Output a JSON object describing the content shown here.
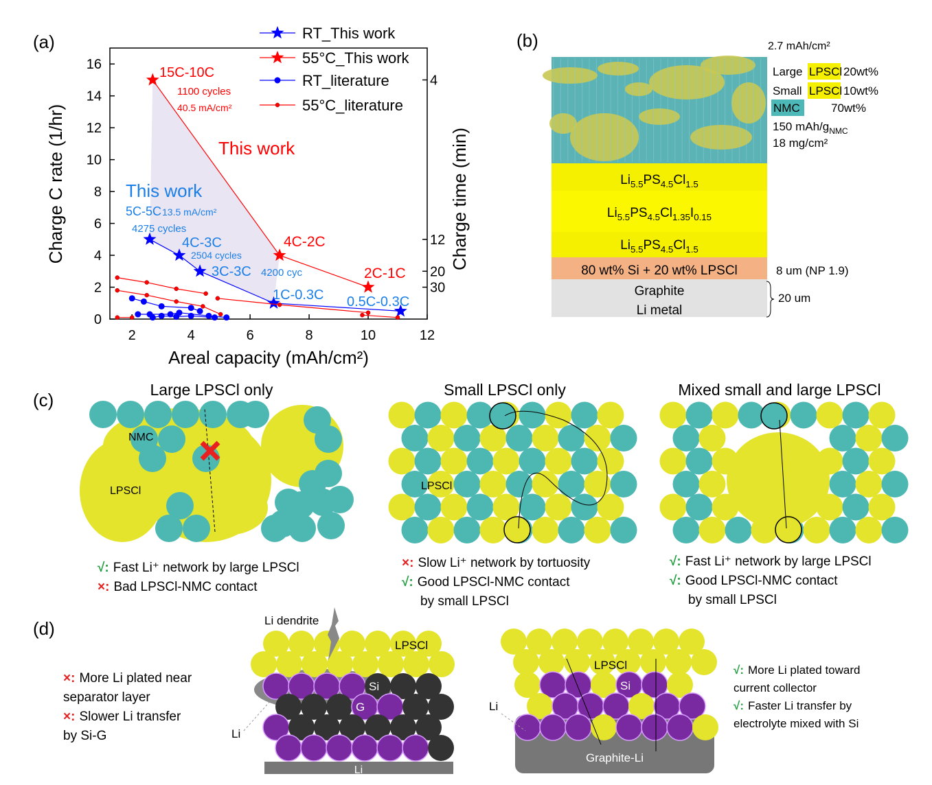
{
  "panel_labels": [
    "(a)",
    "(b)",
    "(c)",
    "(d)"
  ],
  "chart_data": {
    "type": "line",
    "x_label": "Areal capacity (mAh/cm²)",
    "y_label": "Charge C rate (1/hr)",
    "y2_label": "Charge time (min)",
    "xlim": [
      1.25,
      12
    ],
    "xticks": [
      2,
      4,
      6,
      8,
      10,
      12
    ],
    "ylim": [
      0,
      17
    ],
    "yticks": [
      0,
      2,
      4,
      6,
      8,
      10,
      12,
      14,
      16
    ],
    "y2ticks": [
      4,
      12,
      20,
      30
    ],
    "legend": "upper right",
    "series": [
      {
        "name": "RT_This work",
        "color": "#0000ff",
        "marker": "star",
        "x": [
          2.6,
          3.6,
          4.3,
          6.8,
          11.1
        ],
        "values": [
          5,
          4,
          3,
          1,
          0.5
        ]
      },
      {
        "name": "55°C_This work",
        "color": "#ff0000",
        "marker": "star",
        "x": [
          2.7,
          7,
          10
        ],
        "values": [
          15,
          4,
          2
        ]
      },
      {
        "name": "RT_literature",
        "color": "#0000ff",
        "marker": "circle",
        "x": [
          2,
          2.4,
          3,
          4,
          4.3,
          null,
          2.2,
          2.6,
          3.3,
          3.6,
          4.6,
          5.2,
          null,
          2.7,
          3,
          3.5,
          4,
          4.8
        ],
        "values": [
          1.3,
          1.1,
          0.8,
          0.7,
          0.5,
          null,
          0.3,
          0.3,
          0.3,
          0.4,
          0.2,
          0.1,
          null,
          0.1,
          0.2,
          0.15,
          0.2,
          0.1
        ]
      },
      {
        "name": "55°C_literature",
        "color": "#ff0000",
        "marker": "small-circle",
        "x": [
          1.5,
          2.5,
          3.5,
          4.5,
          null,
          1.5,
          2.5,
          3.5,
          4.4,
          5,
          null,
          4.9,
          7,
          10,
          null,
          1.5,
          2,
          null,
          9.8,
          11
        ],
        "values": [
          2.6,
          2.3,
          1.9,
          1.6,
          null,
          1.8,
          1.5,
          1.1,
          0.8,
          0.3,
          null,
          1.3,
          0.9,
          0.4,
          null,
          0.1,
          0.1,
          null,
          0.25,
          0.1
        ]
      }
    ],
    "annotations": [
      {
        "text": "15C-10C",
        "color": "#ff0000"
      },
      {
        "text": "1100 cycles",
        "color": "#ff0000"
      },
      {
        "text": "40.5 mA/cm²",
        "color": "#ff0000"
      },
      {
        "text": "This work",
        "color": "#ff0000"
      },
      {
        "text": "This work",
        "color": "#1a7fe8"
      },
      {
        "text": "5C-5C",
        "color": "#1a7fe8"
      },
      {
        "text": "13.5 mA/cm²",
        "color": "#1a7fe8"
      },
      {
        "text": "4275 cycles",
        "color": "#1a7fe8"
      },
      {
        "text": "4C-3C",
        "color": "#1a7fe8"
      },
      {
        "text": "2504 cycles",
        "color": "#1a7fe8"
      },
      {
        "text": "3C-3C",
        "color": "#1a7fe8"
      },
      {
        "text": "4200 cyc",
        "color": "#1a7fe8"
      },
      {
        "text": "1C-0.3C",
        "color": "#1a7fe8"
      },
      {
        "text": "0.5C-0.3C",
        "color": "#1a7fe8"
      },
      {
        "text": "4C-2C",
        "color": "#ff0000"
      },
      {
        "text": "2C-1C",
        "color": "#ff0000"
      }
    ]
  },
  "panel_b": {
    "capacity": "2.7 mAh/cm²",
    "composition": [
      {
        "label": "Large",
        "material": "LPSCl",
        "wt": "20wt%"
      },
      {
        "label": "Small",
        "material": "LPSCl",
        "wt": "10wt%"
      },
      {
        "material": "NMC",
        "wt": "70wt%"
      }
    ],
    "specific_capacity": {
      "text": "150 mAh/g",
      "sub": "NMC"
    },
    "loading": "18 mg/cm²",
    "layers": [
      {
        "parts": [
          "Li",
          "5.5",
          "PS",
          "4.5",
          "Cl",
          "1.5"
        ]
      },
      {
        "parts": [
          "Li",
          "5.5",
          "PS",
          "4.5",
          "Cl",
          "1.35",
          "I",
          "0.15"
        ]
      },
      {
        "parts": [
          "Li",
          "5.5",
          "PS",
          "4.5",
          "Cl",
          "1.5"
        ]
      }
    ],
    "anode_layer": "80 wt% Si + 20 wt% LPSCl",
    "anode_thickness": "8 um (NP 1.9)",
    "graphite": "Graphite",
    "li_metal": "Li metal",
    "li_thickness": "20 um"
  },
  "panel_c": {
    "diagrams": [
      {
        "title": "Large LPSCl only",
        "labels": [
          "NMC",
          "LPSCl"
        ],
        "notes": [
          {
            "mark": "√:",
            "lines": [
              "Fast Li⁺ network by large LPSCl"
            ]
          },
          {
            "mark": "×:",
            "lines": [
              "Bad LPSCl-NMC contact"
            ]
          }
        ]
      },
      {
        "title": "Small LPSCl only",
        "labels": [
          "LPSCl"
        ],
        "notes": [
          {
            "mark": "×:",
            "lines": [
              "Slow Li⁺ network by tortuosity"
            ]
          },
          {
            "mark": "√:",
            "lines": [
              "Good LPSCl-NMC contact",
              "by small LPSCl"
            ]
          }
        ]
      },
      {
        "title": "Mixed small and large LPSCl",
        "notes": [
          {
            "mark": "√:",
            "lines": [
              "Fast Li⁺ network by large LPSCl"
            ]
          },
          {
            "mark": "√:",
            "lines": [
              "Good LPSCl-NMC contact",
              "by small LPSCl"
            ]
          }
        ]
      }
    ]
  },
  "panel_d": {
    "left": {
      "notes": [
        {
          "mark": "×:",
          "lines": [
            "More Li plated near",
            "separator layer"
          ]
        },
        {
          "mark": "×:",
          "lines": [
            "Slower Li transfer",
            "by Si-G"
          ]
        }
      ],
      "labels": {
        "dendrite": "Li dendrite",
        "lpscl": "LPSCl",
        "si": "Si",
        "g": "G",
        "li_side": "Li",
        "li_bottom": "Li"
      }
    },
    "right": {
      "notes": [
        {
          "mark": "√:",
          "lines": [
            "More Li plated toward",
            "current collector"
          ]
        },
        {
          "mark": "√:",
          "lines": [
            "Faster Li transfer by",
            "electrolyte mixed with Si"
          ]
        }
      ],
      "labels": {
        "lpscl": "LPSCl",
        "si": "Si",
        "li_side": "Li",
        "graphite_li": "Graphite-Li"
      }
    }
  }
}
